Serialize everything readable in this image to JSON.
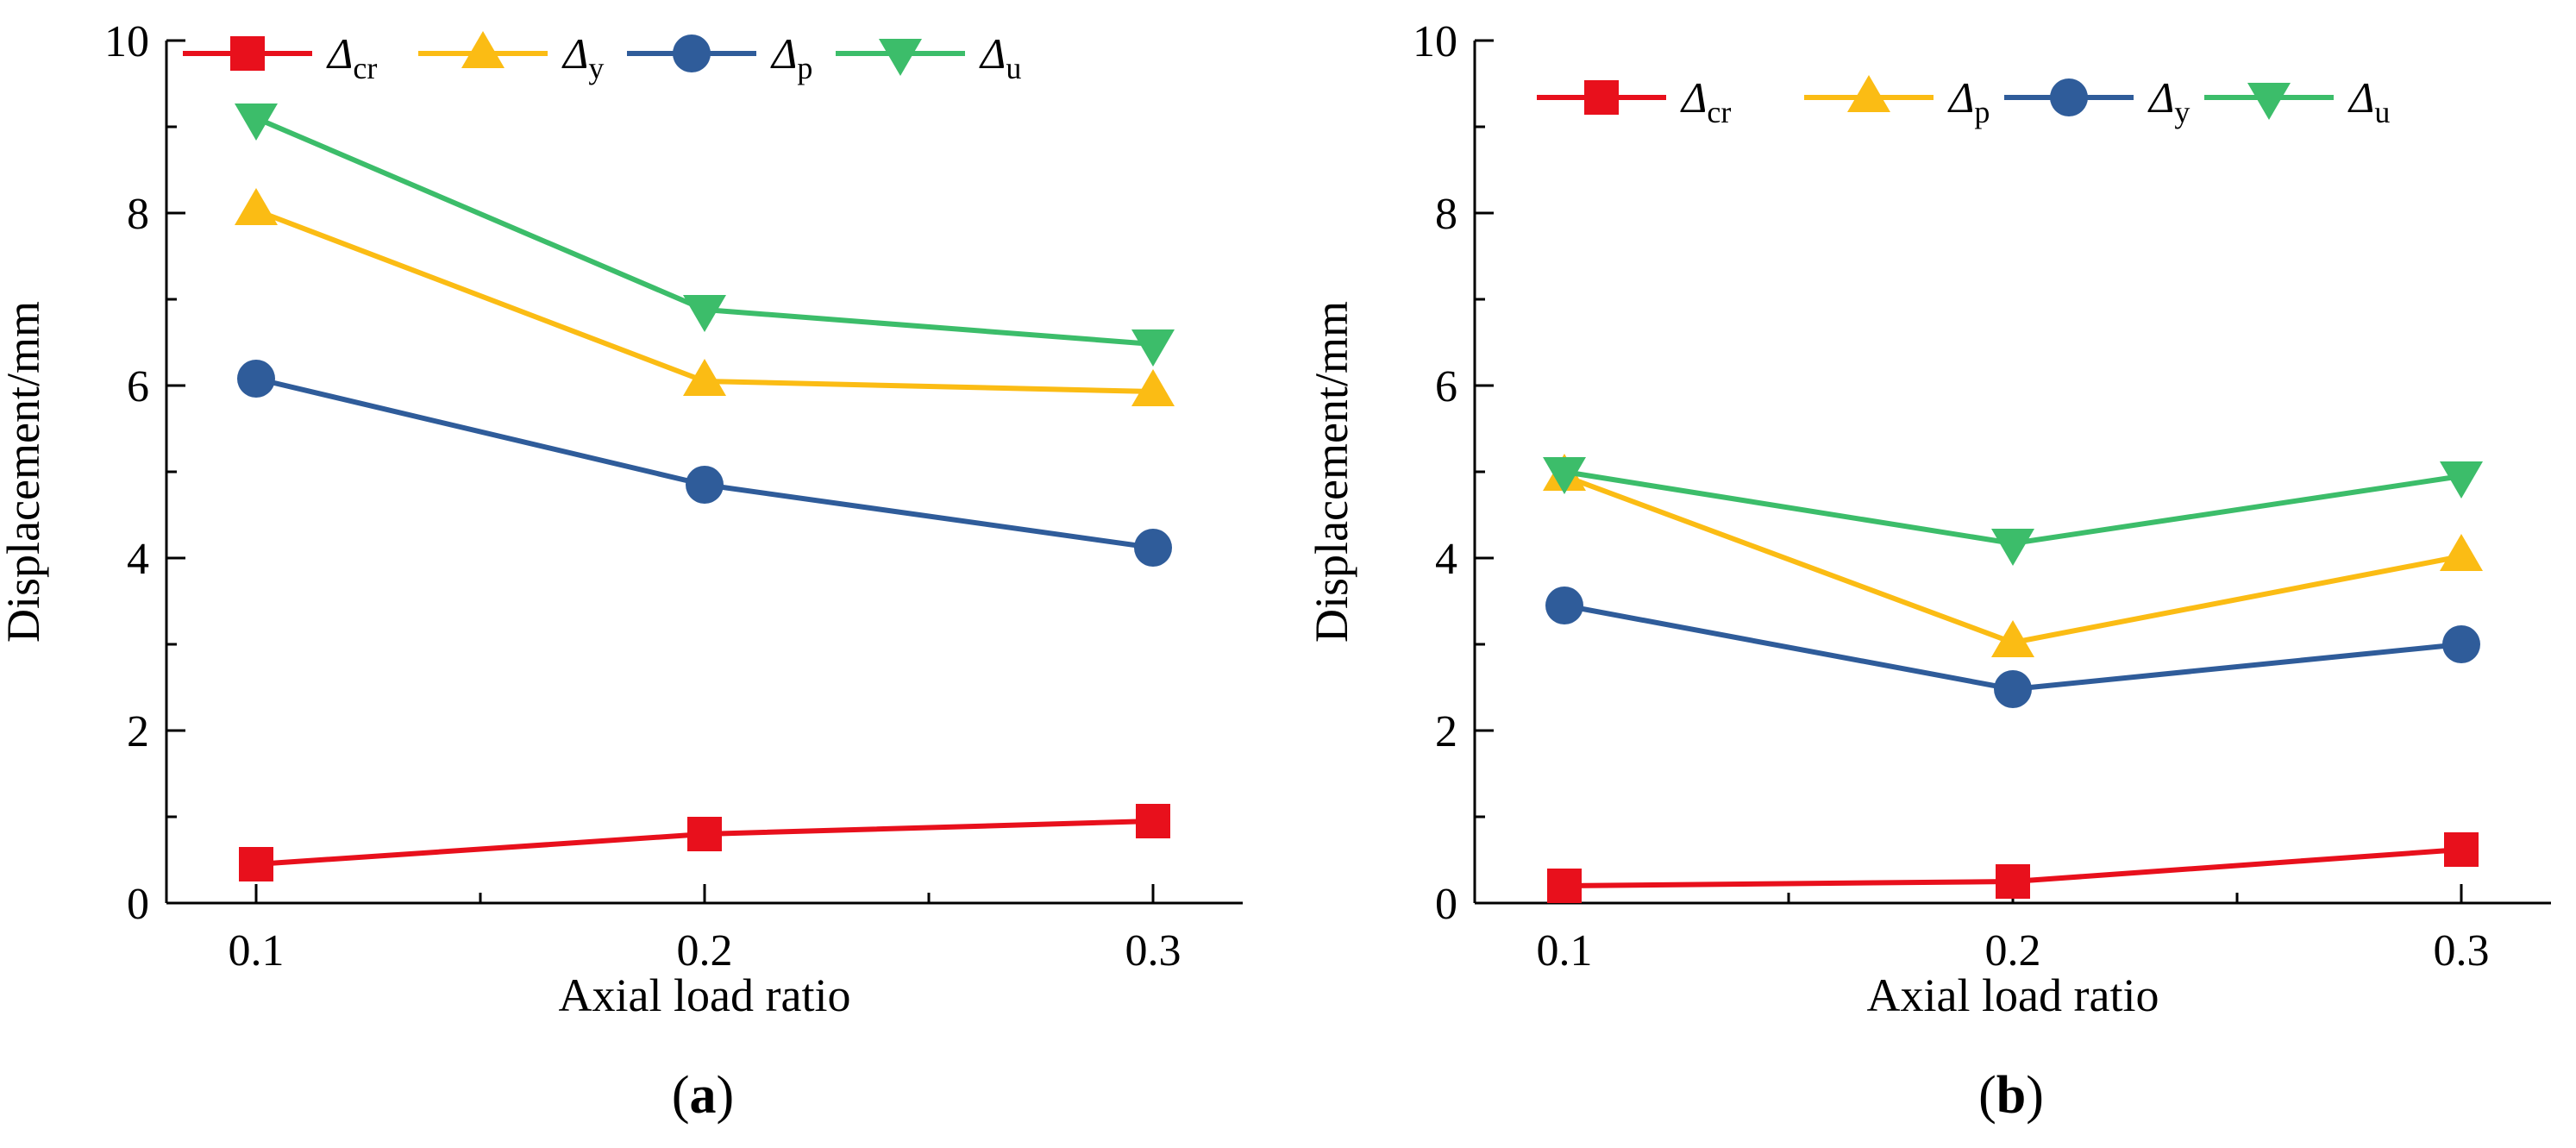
{
  "chart_data": [
    {
      "type": "line",
      "panel_label": "a",
      "x": [
        0.1,
        0.2,
        0.3
      ],
      "x_tick_labels": [
        "0.1",
        "0.2",
        "0.3"
      ],
      "xlim": [
        0.08,
        0.32
      ],
      "ylim": [
        0,
        10
      ],
      "y_ticks": [
        0,
        2,
        4,
        6,
        8,
        10
      ],
      "y_tick_labels": [
        "0",
        "2",
        "4",
        "6",
        "8",
        "10"
      ],
      "xlabel": "Axial load ratio",
      "ylabel": "Displacement/mm",
      "legend_position": "top",
      "series": [
        {
          "name": "Δcr",
          "symbol": "Δ",
          "subscript": "cr",
          "marker": "square",
          "color": "#e8101c",
          "values": [
            0.45,
            0.8,
            0.95
          ]
        },
        {
          "name": "Δy",
          "symbol": "Δ",
          "subscript": "y",
          "marker": "triangle-up",
          "color": "#fbbc14",
          "values": [
            8.03,
            6.05,
            5.93
          ]
        },
        {
          "name": "Δp",
          "symbol": "Δ",
          "subscript": "p",
          "marker": "circle",
          "color": "#2f5c9a",
          "values": [
            6.08,
            4.85,
            4.12
          ]
        },
        {
          "name": "Δu",
          "symbol": "Δ",
          "subscript": "u",
          "marker": "triangle-down",
          "color": "#3cbd6a",
          "values": [
            9.1,
            6.88,
            6.48
          ]
        }
      ]
    },
    {
      "type": "line",
      "panel_label": "b",
      "x": [
        0.1,
        0.2,
        0.3
      ],
      "x_tick_labels": [
        "0.1",
        "0.2",
        "0.3"
      ],
      "xlim": [
        0.08,
        0.32
      ],
      "ylim": [
        0,
        10
      ],
      "y_ticks": [
        0,
        2,
        4,
        6,
        8,
        10
      ],
      "y_tick_labels": [
        "0",
        "2",
        "4",
        "6",
        "8",
        "10"
      ],
      "xlabel": "Axial load ratio",
      "ylabel": "Displacement/mm",
      "legend_position": "top",
      "series": [
        {
          "name": "Δcr",
          "symbol": "Δ",
          "subscript": "cr",
          "marker": "square",
          "color": "#e8101c",
          "values": [
            0.2,
            0.25,
            0.62
          ]
        },
        {
          "name": "Δp",
          "symbol": "Δ",
          "subscript": "p",
          "marker": "triangle-up",
          "color": "#fbbc14",
          "values": [
            4.95,
            3.02,
            4.02
          ]
        },
        {
          "name": "Δy",
          "symbol": "Δ",
          "subscript": "y",
          "marker": "circle",
          "color": "#2f5c9a",
          "values": [
            3.45,
            2.48,
            3.0
          ]
        },
        {
          "name": "Δu",
          "symbol": "Δ",
          "subscript": "u",
          "marker": "triangle-down",
          "color": "#3cbd6a",
          "values": [
            5.0,
            4.17,
            4.95
          ]
        }
      ]
    }
  ]
}
